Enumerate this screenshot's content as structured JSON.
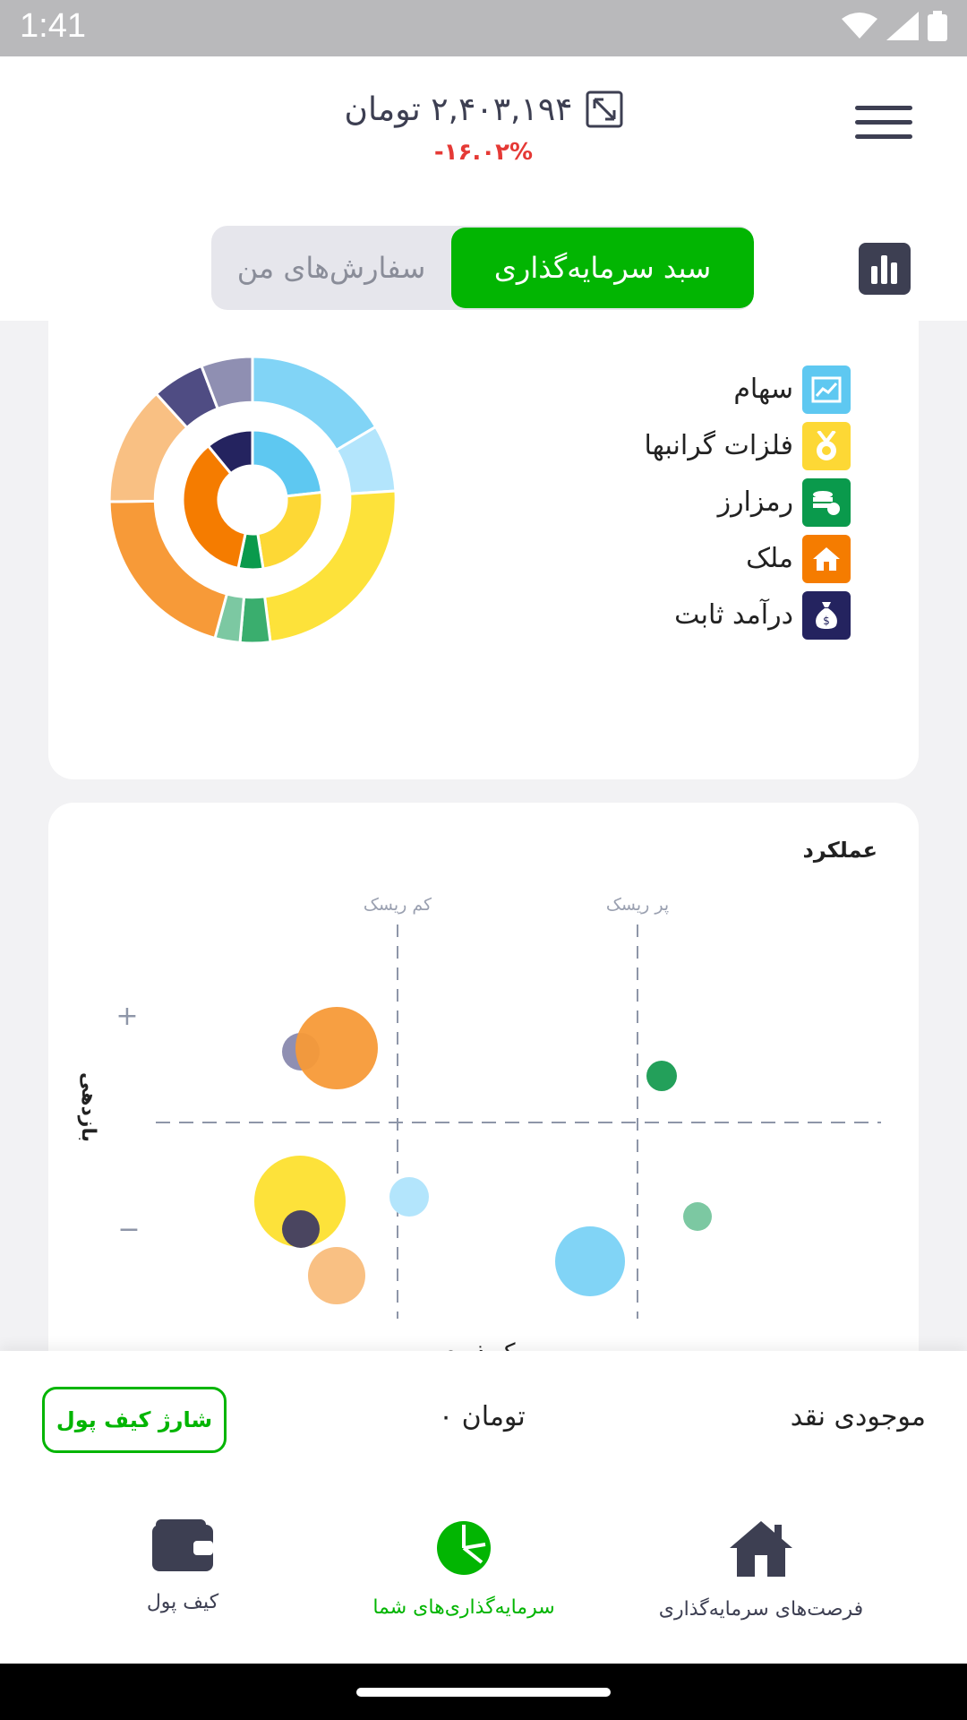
{
  "status_bar": {
    "time": "1:41"
  },
  "header": {
    "balance": "۲,۴۰۳,۱۹۴ تومان",
    "change": "-۱۶.۰۲%"
  },
  "tabs": [
    {
      "label": "سبد سرمایه‌گذاری",
      "active": true
    },
    {
      "label": "سفارش‌های من",
      "active": false
    }
  ],
  "legend": [
    {
      "label": "سهام",
      "color": "#5ec8f1",
      "icon": "stock-chart-icon"
    },
    {
      "label": "فلزات گرانبها",
      "color": "#fdd835",
      "icon": "medal-icon"
    },
    {
      "label": "رمزارز",
      "color": "#0a9a4c",
      "icon": "coins-icon"
    },
    {
      "label": "ملک",
      "color": "#f57c00",
      "icon": "home-icon"
    },
    {
      "label": "درآمد ثابت",
      "color": "#2e2d6b",
      "icon": "money-bag-icon"
    }
  ],
  "performance": {
    "title": "عملکرد",
    "low_risk_label": "کم ریسک",
    "high_risk_label": "پر ریسک",
    "plus": "+",
    "minus": "−",
    "y_label": "بازدهی",
    "x_label": "ریسک‌پذیری"
  },
  "cash": {
    "label": "موجودی نقد",
    "amount": "۰ تومان",
    "charge_button": "شارژ کیف پول"
  },
  "bottom_nav": [
    {
      "label": "کیف پول",
      "icon": "wallet-icon",
      "active": false
    },
    {
      "label": "سرمایه‌گذاری‌های شما",
      "icon": "pie-chart-icon",
      "active": true
    },
    {
      "label": "فرصت‌های سرمایه‌گذاری",
      "icon": "home-icon",
      "active": false
    }
  ]
}
